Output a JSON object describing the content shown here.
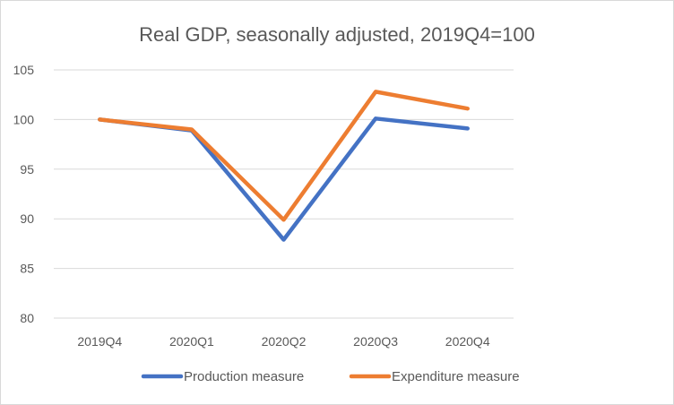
{
  "chart_data": {
    "type": "line",
    "title": "Real GDP, seasonally adjusted, 2019Q4=100",
    "xlabel": "",
    "ylabel": "",
    "categories": [
      "2019Q4",
      "2020Q1",
      "2020Q2",
      "2020Q3",
      "2020Q4"
    ],
    "ylim": [
      80,
      105
    ],
    "yticks": [
      80,
      85,
      90,
      95,
      100,
      105
    ],
    "grid": true,
    "legend": "bottom",
    "series": [
      {
        "name": "Production measure",
        "color": "#4472c4",
        "values": [
          100.0,
          98.9,
          87.9,
          100.1,
          99.1
        ]
      },
      {
        "name": "Expenditure measure",
        "color": "#ed7d31",
        "values": [
          100.0,
          99.0,
          89.9,
          102.8,
          101.1
        ]
      }
    ]
  }
}
